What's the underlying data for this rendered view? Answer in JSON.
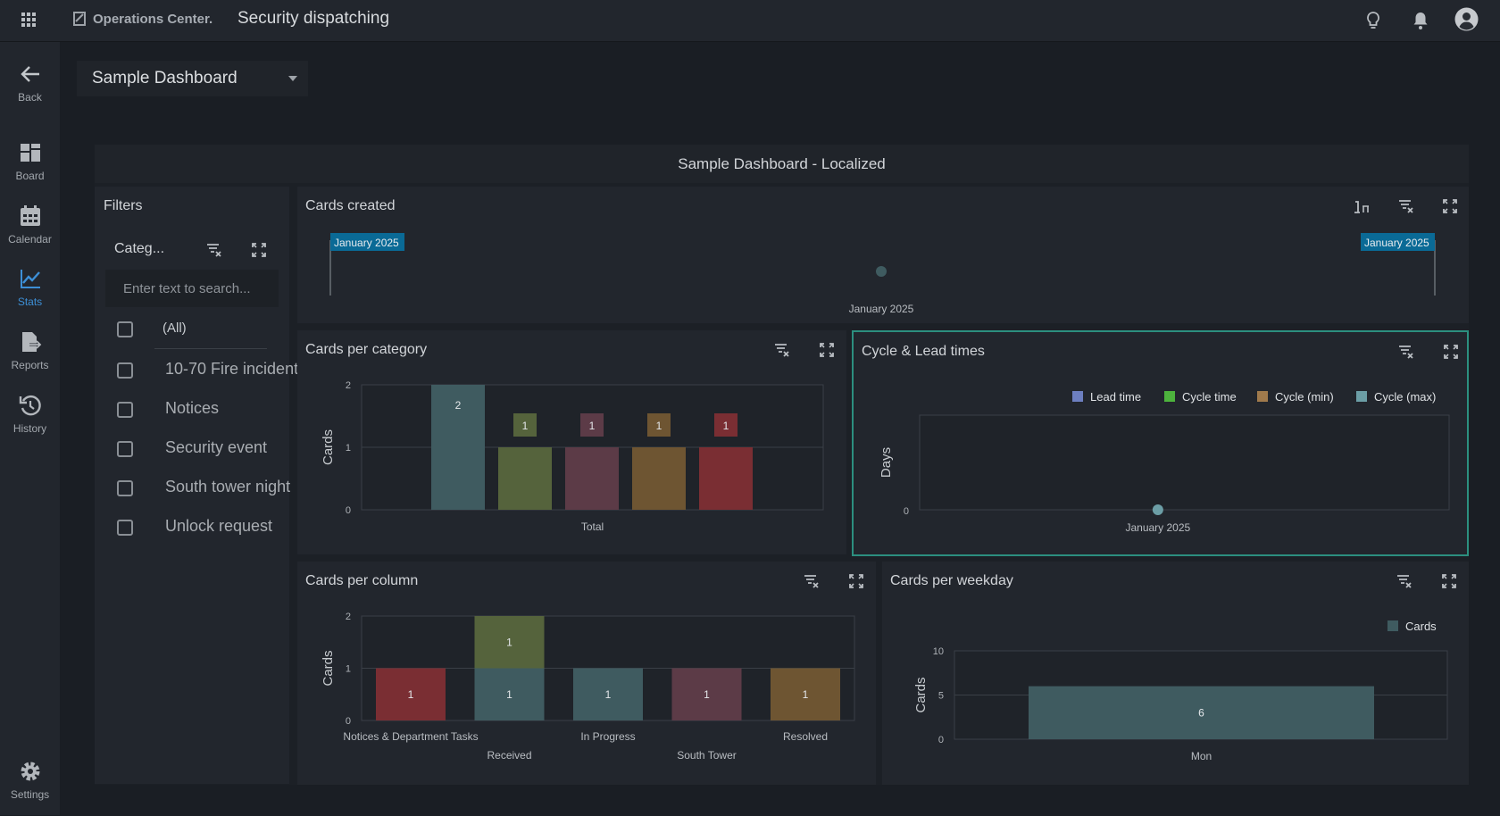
{
  "topbar": {
    "brand": "Operations Center.",
    "page_title": "Security dispatching"
  },
  "sidebar": {
    "items": [
      {
        "label": "Back",
        "icon": "arrow-left-icon"
      },
      {
        "label": "Board",
        "icon": "board-icon"
      },
      {
        "label": "Calendar",
        "icon": "calendar-icon"
      },
      {
        "label": "Stats",
        "icon": "stats-icon",
        "active": true
      },
      {
        "label": "Reports",
        "icon": "reports-icon"
      },
      {
        "label": "History",
        "icon": "history-icon"
      },
      {
        "label": "Settings",
        "icon": "gear-icon"
      }
    ]
  },
  "dashboard": {
    "selected": "Sample Dashboard",
    "title": "Sample Dashboard - Localized"
  },
  "filters": {
    "title": "Filters",
    "field": "Categ...",
    "search_placeholder": "Enter text to search...",
    "options": [
      "(All)",
      "10-70 Fire incident",
      "Notices",
      "Security event",
      "South tower night",
      "Unlock request"
    ]
  },
  "colors": {
    "teal": "#3f5b60",
    "olive": "#55633c",
    "mauve": "#5c3b47",
    "ochre": "#6e5532",
    "red": "#7a2e33",
    "lead": "#6d7fc0",
    "cycle": "#4db33d",
    "cycle_min": "#a07a4c",
    "cycle_max": "#6c9ea6"
  },
  "panels": {
    "cards_created": {
      "title": "Cards created",
      "range_start": "January 2025",
      "range_end": "January 2025",
      "x_label": "January 2025"
    },
    "cards_per_category": {
      "title": "Cards per category"
    },
    "cycle_lead": {
      "title": "Cycle & Lead times"
    },
    "cards_per_column": {
      "title": "Cards per column"
    },
    "cards_per_weekday": {
      "title": "Cards per weekday"
    }
  },
  "chart_data": [
    {
      "id": "cards_per_category",
      "type": "bar",
      "categories": [
        "Total"
      ],
      "ylabel": "Cards",
      "ylim": [
        0,
        2
      ],
      "yticks": [
        0,
        1,
        2
      ],
      "series": [
        {
          "values": [
            2
          ],
          "color": "#3f5b60"
        },
        {
          "values": [
            1
          ],
          "color": "#55633c"
        },
        {
          "values": [
            1
          ],
          "color": "#5c3b47"
        },
        {
          "values": [
            1
          ],
          "color": "#6e5532"
        },
        {
          "values": [
            1
          ],
          "color": "#7a2e33"
        }
      ]
    },
    {
      "id": "cycle_lead",
      "type": "line",
      "ylabel": "Days",
      "yticks": [
        0
      ],
      "x": [
        "January 2025"
      ],
      "series": [
        {
          "name": "Lead time",
          "color": "#6d7fc0"
        },
        {
          "name": "Cycle time",
          "color": "#4db33d"
        },
        {
          "name": "Cycle (min)",
          "color": "#a07a4c"
        },
        {
          "name": "Cycle (max)",
          "color": "#6c9ea6",
          "values": [
            0
          ]
        }
      ],
      "legend": "top-right"
    },
    {
      "id": "cards_per_column",
      "type": "bar",
      "ylabel": "Cards",
      "ylim": [
        0,
        2
      ],
      "yticks": [
        0,
        1,
        2
      ],
      "categories": [
        "Notices & Department Tasks",
        "Received",
        "In Progress",
        "South Tower",
        "Resolved"
      ],
      "stacks": [
        [
          {
            "value": 1,
            "color": "#7a2e33"
          }
        ],
        [
          {
            "value": 1,
            "color": "#3f5b60"
          },
          {
            "value": 1,
            "color": "#55633c"
          }
        ],
        [
          {
            "value": 1,
            "color": "#3f5b60"
          }
        ],
        [
          {
            "value": 1,
            "color": "#5c3b47"
          }
        ],
        [
          {
            "value": 1,
            "color": "#6e5532"
          }
        ]
      ]
    },
    {
      "id": "cards_per_weekday",
      "type": "bar",
      "ylabel": "Cards",
      "ylim": [
        0,
        10
      ],
      "yticks": [
        0,
        5,
        10
      ],
      "categories": [
        "Mon"
      ],
      "series": [
        {
          "name": "Cards",
          "values": [
            6
          ],
          "color": "#3f5b60"
        }
      ],
      "legend": "top-right"
    }
  ]
}
